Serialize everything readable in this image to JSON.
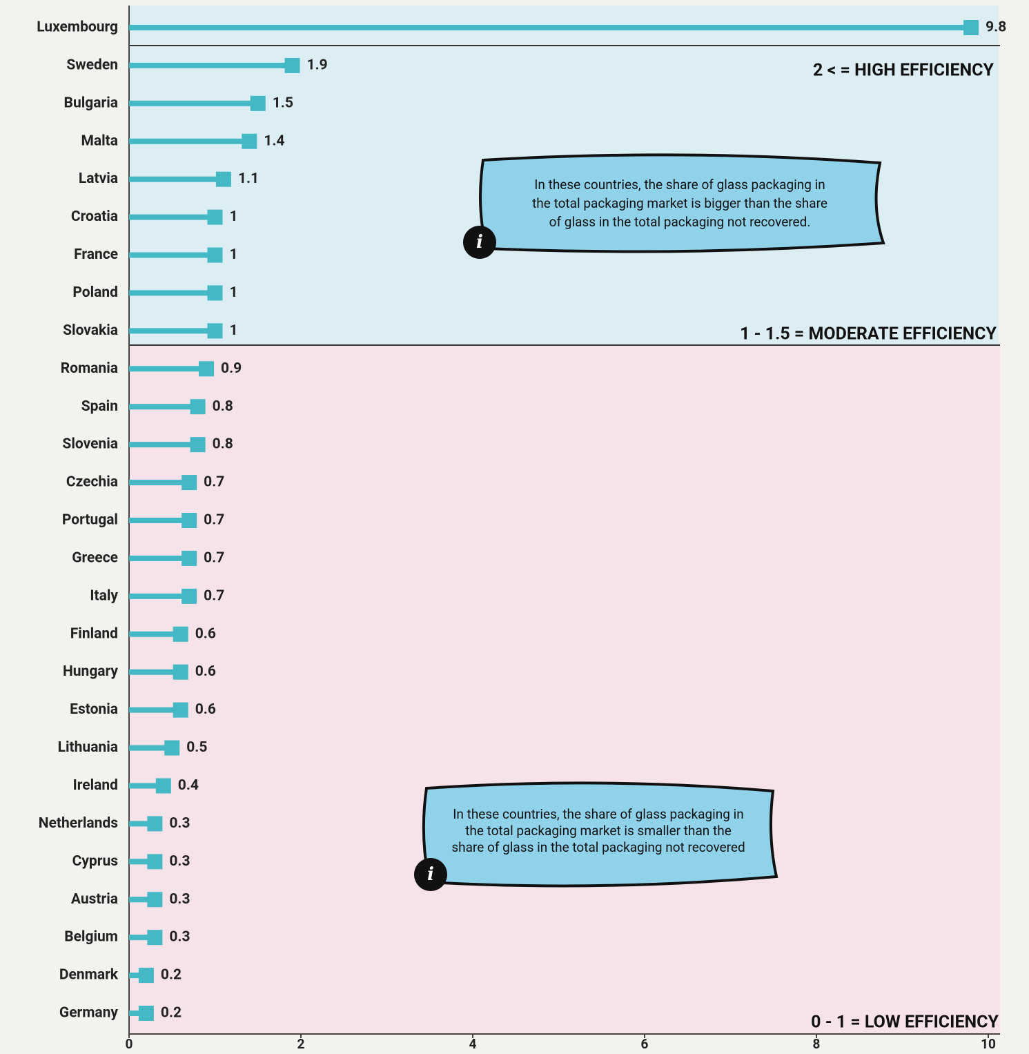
{
  "chart_data": {
    "type": "bar",
    "orientation": "horizontal",
    "categories": [
      "Luxembourg",
      "Sweden",
      "Bulgaria",
      "Malta",
      "Latvia",
      "Croatia",
      "France",
      "Poland",
      "Slovakia",
      "Romania",
      "Spain",
      "Slovenia",
      "Czechia",
      "Portugal",
      "Greece",
      "Italy",
      "Finland",
      "Hungary",
      "Estonia",
      "Lithuania",
      "Ireland",
      "Netherlands",
      "Cyprus",
      "Austria",
      "Belgium",
      "Denmark",
      "Germany"
    ],
    "values": [
      9.8,
      1.9,
      1.5,
      1.4,
      1.1,
      1,
      1,
      1,
      1,
      0.9,
      0.8,
      0.8,
      0.7,
      0.7,
      0.7,
      0.7,
      0.6,
      0.6,
      0.6,
      0.5,
      0.4,
      0.3,
      0.3,
      0.3,
      0.3,
      0.2,
      0.2
    ],
    "color": "#45b8c6",
    "xlim": [
      0,
      10
    ],
    "xticks": [
      0,
      2,
      4,
      6,
      8,
      10
    ],
    "zones": [
      "2 < = HIGH EFFICIENCY",
      "1 - 1.5 = MODERATE EFFICIENCY",
      "0 - 1 = LOW EFFICIENCY"
    ],
    "annotations": [
      {
        "icon": "i",
        "lines": [
          "In these countries, the share of glass packaging in",
          "the total packaging market is bigger than the share",
          "of glass in the total packaging not recovered."
        ]
      },
      {
        "icon": "i",
        "lines": [
          "In these countries, the share of glass packaging in",
          "the total packaging market is smaller than the",
          "share of glass in the total packaging not recovered"
        ]
      }
    ]
  }
}
